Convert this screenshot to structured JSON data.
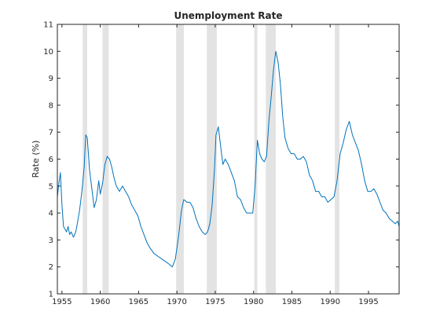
{
  "chart_data": {
    "type": "line",
    "title": "Unemployment Rate",
    "xlabel": "",
    "ylabel": "Rate (%)",
    "xlim": [
      1954.4,
      1999.0
    ],
    "ylim": [
      1,
      11
    ],
    "xticks": [
      1955,
      1960,
      1965,
      1970,
      1975,
      1980,
      1985,
      1990,
      1995
    ],
    "yticks": [
      1,
      2,
      3,
      4,
      5,
      6,
      7,
      8,
      9,
      10,
      11
    ],
    "grid": false,
    "box": true,
    "line_color": "#0072bd",
    "band_color": "#e3e3e3",
    "recessions": [
      [
        1957.7,
        1958.3
      ],
      [
        1960.3,
        1961.1
      ],
      [
        1969.9,
        1970.9
      ],
      [
        1973.9,
        1975.2
      ],
      [
        1980.1,
        1980.5
      ],
      [
        1981.6,
        1982.9
      ],
      [
        1990.6,
        1991.2
      ]
    ],
    "series": [
      {
        "x": [
          1954.4,
          1954.6,
          1954.8,
          1955.0,
          1955.2,
          1955.4,
          1955.6,
          1955.8,
          1956.0,
          1956.2,
          1956.5,
          1956.8,
          1957.0,
          1957.3,
          1957.6,
          1957.9,
          1958.1,
          1958.3,
          1958.6,
          1958.9,
          1959.2,
          1959.5,
          1959.8,
          1960.0,
          1960.3,
          1960.6,
          1960.9,
          1961.2,
          1961.5,
          1961.8,
          1962.1,
          1962.5,
          1962.9,
          1963.3,
          1963.7,
          1964.1,
          1964.5,
          1964.9,
          1965.3,
          1965.7,
          1966.1,
          1966.5,
          1967.0,
          1967.5,
          1968.0,
          1968.5,
          1969.0,
          1969.4,
          1969.8,
          1970.2,
          1970.6,
          1970.9,
          1971.3,
          1971.7,
          1972.1,
          1972.5,
          1972.9,
          1973.3,
          1973.7,
          1974.0,
          1974.3,
          1974.6,
          1974.9,
          1975.1,
          1975.4,
          1975.7,
          1976.0,
          1976.3,
          1976.7,
          1977.1,
          1977.5,
          1977.9,
          1978.3,
          1978.7,
          1979.1,
          1979.5,
          1979.9,
          1980.2,
          1980.5,
          1980.8,
          1981.1,
          1981.4,
          1981.7,
          1982.0,
          1982.3,
          1982.6,
          1982.9,
          1983.2,
          1983.5,
          1983.8,
          1984.1,
          1984.5,
          1984.9,
          1985.3,
          1985.7,
          1986.1,
          1986.5,
          1986.9,
          1987.3,
          1987.7,
          1988.1,
          1988.5,
          1988.9,
          1989.3,
          1989.7,
          1990.1,
          1990.5,
          1990.9,
          1991.3,
          1991.7,
          1992.1,
          1992.5,
          1992.9,
          1993.3,
          1993.7,
          1994.1,
          1994.5,
          1994.9,
          1995.3,
          1995.7,
          1996.1,
          1996.5,
          1996.9,
          1997.3,
          1997.7,
          1998.1,
          1998.5,
          1998.8,
          1999.0
        ],
        "values": [
          4.6,
          5.1,
          5.5,
          4.3,
          3.5,
          3.4,
          3.3,
          3.5,
          3.2,
          3.3,
          3.1,
          3.3,
          3.6,
          4.1,
          4.8,
          5.7,
          6.9,
          6.8,
          5.6,
          4.9,
          4.2,
          4.5,
          5.2,
          4.7,
          5.1,
          5.8,
          6.1,
          6.0,
          5.7,
          5.3,
          5.0,
          4.8,
          5.0,
          4.8,
          4.6,
          4.3,
          4.1,
          3.9,
          3.5,
          3.2,
          2.9,
          2.7,
          2.5,
          2.4,
          2.3,
          2.2,
          2.1,
          2.0,
          2.3,
          3.1,
          4.1,
          4.5,
          4.4,
          4.4,
          4.2,
          3.8,
          3.5,
          3.3,
          3.2,
          3.3,
          3.6,
          4.3,
          5.6,
          6.9,
          7.2,
          6.5,
          5.8,
          6.0,
          5.8,
          5.5,
          5.2,
          4.6,
          4.5,
          4.2,
          4.0,
          4.0,
          4.0,
          5.0,
          6.7,
          6.2,
          6.0,
          5.9,
          6.1,
          7.4,
          8.3,
          9.3,
          10.0,
          9.6,
          8.8,
          7.6,
          6.8,
          6.4,
          6.2,
          6.2,
          6.0,
          6.0,
          6.1,
          5.9,
          5.4,
          5.2,
          4.8,
          4.8,
          4.6,
          4.6,
          4.4,
          4.5,
          4.6,
          5.2,
          6.2,
          6.6,
          7.1,
          7.4,
          6.9,
          6.6,
          6.3,
          5.8,
          5.2,
          4.8,
          4.8,
          4.9,
          4.7,
          4.4,
          4.1,
          4.0,
          3.8,
          3.7,
          3.6,
          3.7,
          3.5
        ]
      }
    ]
  }
}
